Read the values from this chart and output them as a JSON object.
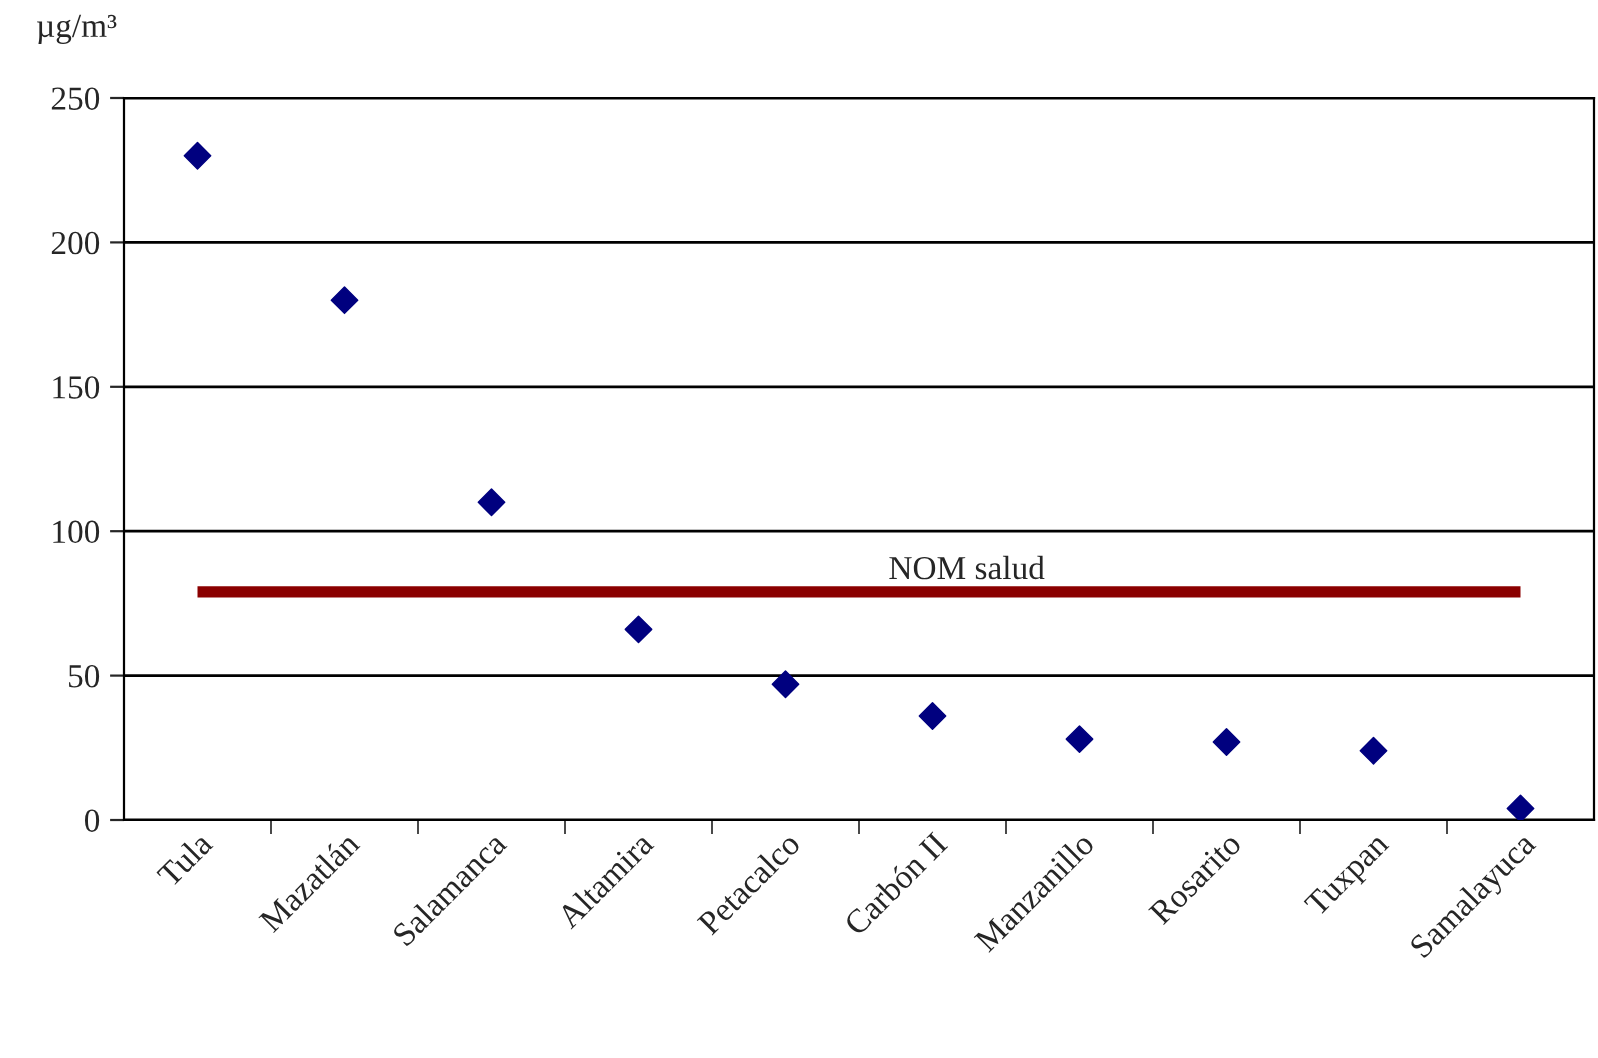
{
  "chart_data": {
    "type": "scatter",
    "ylabel": "µg/m³",
    "categories": [
      "Tula",
      "Mazatlán",
      "Salamanca",
      "Altamira",
      "Petacalco",
      "Carbón II",
      "Manzanillo",
      "Rosarito",
      "Tuxpan",
      "Samalayuca"
    ],
    "series": [
      {
        "color": "#00007f",
        "values": [
          230,
          180,
          110,
          66,
          47,
          36,
          28,
          27,
          24,
          4
        ]
      }
    ],
    "ylim": [
      0,
      250
    ],
    "yticks": [
      0,
      50,
      100,
      150,
      200,
      250
    ],
    "grid": "y",
    "marker": "diamond",
    "legend": false,
    "ref_lines": [
      {
        "axis": "y",
        "value": 79,
        "label": "NOM salud",
        "color": "#8b0000",
        "line_style": "solid"
      }
    ]
  }
}
